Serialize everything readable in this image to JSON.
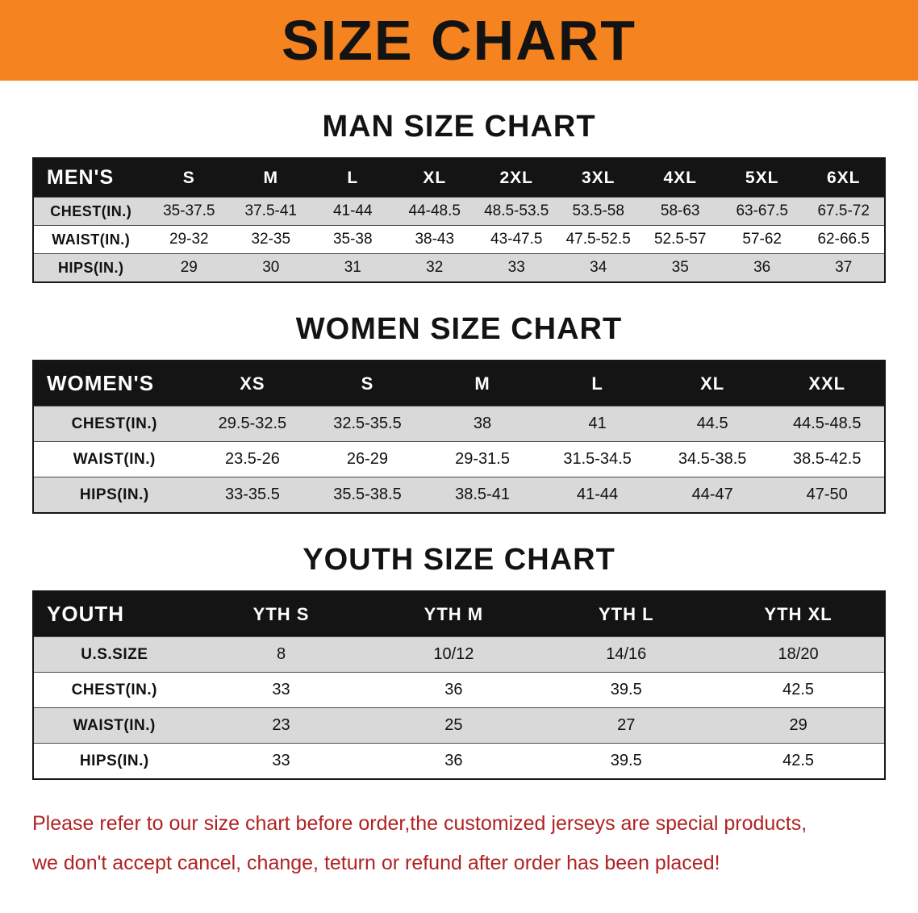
{
  "banner": {
    "title": "SIZE CHART"
  },
  "colors": {
    "banner_bg": "#F5831F",
    "header_bg": "#141414",
    "header_text": "#FFFFFF",
    "stripe": "#D9D9D9",
    "disclaimer_text": "#B12222",
    "body_text": "#111111"
  },
  "sections": [
    {
      "heading": "MAN SIZE CHART",
      "table": {
        "header": [
          "MEN'S",
          "S",
          "M",
          "L",
          "XL",
          "2XL",
          "3XL",
          "4XL",
          "5XL",
          "6XL"
        ],
        "rows": [
          [
            "CHEST(IN.)",
            "35-37.5",
            "37.5-41",
            "41-44",
            "44-48.5",
            "48.5-53.5",
            "53.5-58",
            "58-63",
            "63-67.5",
            "67.5-72"
          ],
          [
            "WAIST(IN.)",
            "29-32",
            "32-35",
            "35-38",
            "38-43",
            "43-47.5",
            "47.5-52.5",
            "52.5-57",
            "57-62",
            "62-66.5"
          ],
          [
            "HIPS(IN.)",
            "29",
            "30",
            "31",
            "32",
            "33",
            "34",
            "35",
            "36",
            "37"
          ]
        ]
      }
    },
    {
      "heading": "WOMEN SIZE CHART",
      "table": {
        "header": [
          "WOMEN'S",
          "XS",
          "S",
          "M",
          "L",
          "XL",
          "XXL"
        ],
        "rows": [
          [
            "CHEST(IN.)",
            "29.5-32.5",
            "32.5-35.5",
            "38",
            "41",
            "44.5",
            "44.5-48.5"
          ],
          [
            "WAIST(IN.)",
            "23.5-26",
            "26-29",
            "29-31.5",
            "31.5-34.5",
            "34.5-38.5",
            "38.5-42.5"
          ],
          [
            "HIPS(IN.)",
            "33-35.5",
            "35.5-38.5",
            "38.5-41",
            "41-44",
            "44-47",
            "47-50"
          ]
        ]
      }
    },
    {
      "heading": "YOUTH SIZE CHART",
      "table": {
        "header": [
          "YOUTH",
          "YTH S",
          "YTH M",
          "YTH L",
          "YTH XL"
        ],
        "rows": [
          [
            "U.S.SIZE",
            "8",
            "10/12",
            "14/16",
            "18/20"
          ],
          [
            "CHEST(IN.)",
            "33",
            "36",
            "39.5",
            "42.5"
          ],
          [
            "WAIST(IN.)",
            "23",
            "25",
            "27",
            "29"
          ],
          [
            "HIPS(IN.)",
            "33",
            "36",
            "39.5",
            "42.5"
          ]
        ]
      }
    }
  ],
  "disclaimer": {
    "line1": "Please refer to our size chart before order,the customized jerseys are special products,",
    "line2": "we don't accept cancel, change, teturn or refund after order has been placed!"
  }
}
